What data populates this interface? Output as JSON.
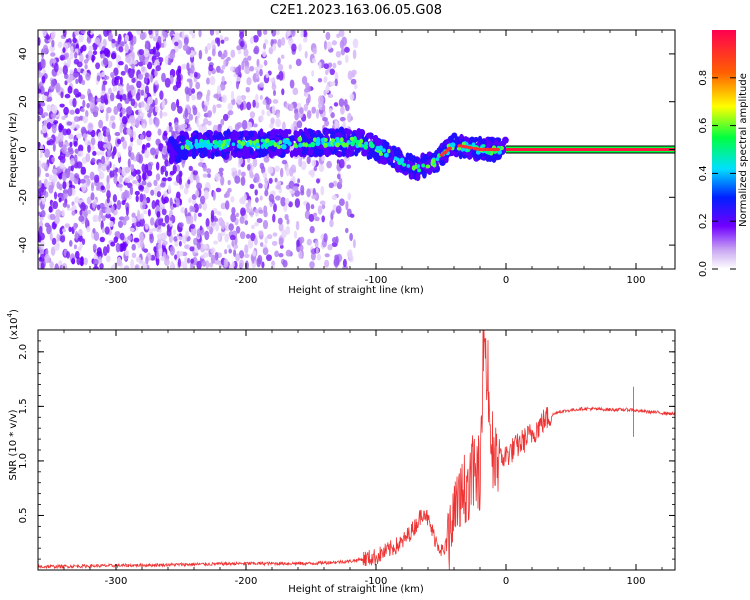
{
  "title": "C2E1.2023.163.06.05.G08",
  "chart_data": [
    {
      "type": "heatmap",
      "xlabel": "Height of straight line (km)",
      "ylabel": "Frequency (Hz)",
      "xlim": [
        -360,
        130
      ],
      "ylim": [
        -50,
        50
      ],
      "xticks": [
        -300,
        -200,
        -100,
        0,
        100
      ],
      "yticks": [
        -40,
        -20,
        0,
        20,
        40
      ],
      "colorbar": {
        "label": "Normalized spectral amplitude",
        "range": [
          0,
          1
        ],
        "ticks": [
          "0.0",
          "0.2",
          "0.4",
          "0.6",
          "0.8"
        ]
      },
      "carrier_line": {
        "frequency": 0,
        "x_start": 0,
        "x_end": 130
      },
      "signal_trace": [
        {
          "x": -250,
          "y": 2
        },
        {
          "x": -200,
          "y": 2
        },
        {
          "x": -150,
          "y": 3
        },
        {
          "x": -110,
          "y": 3
        },
        {
          "x": -90,
          "y": -2
        },
        {
          "x": -70,
          "y": -8
        },
        {
          "x": -55,
          "y": -5
        },
        {
          "x": -40,
          "y": 2
        },
        {
          "x": -20,
          "y": 0
        },
        {
          "x": 0,
          "y": 0
        }
      ]
    },
    {
      "type": "line",
      "xlabel": "Height of straight line (km)",
      "ylabel": "SNR (10 * v/v)",
      "multiplier_label": "(x10",
      "multiplier_exp": "4",
      "multiplier_close": ")",
      "xlim": [
        -360,
        130
      ],
      "ylim": [
        0,
        2.2
      ],
      "xticks": [
        -300,
        -200,
        -100,
        0,
        100
      ],
      "yticks": [
        "0.5",
        "1.0",
        "1.5",
        "2.0"
      ],
      "series": [
        {
          "color": "#ee3333",
          "points": [
            {
              "x": -360,
              "y": 0.03
            },
            {
              "x": -300,
              "y": 0.04
            },
            {
              "x": -250,
              "y": 0.05
            },
            {
              "x": -200,
              "y": 0.06
            },
            {
              "x": -150,
              "y": 0.06
            },
            {
              "x": -120,
              "y": 0.08
            },
            {
              "x": -100,
              "y": 0.12
            },
            {
              "x": -80,
              "y": 0.25
            },
            {
              "x": -70,
              "y": 0.4
            },
            {
              "x": -63,
              "y": 0.55
            },
            {
              "x": -55,
              "y": 0.3
            },
            {
              "x": -48,
              "y": 0.15
            },
            {
              "x": -40,
              "y": 0.45
            },
            {
              "x": -30,
              "y": 0.8
            },
            {
              "x": -20,
              "y": 0.9
            },
            {
              "x": -17,
              "y": 2.2
            },
            {
              "x": -10,
              "y": 0.95
            },
            {
              "x": 0,
              "y": 1.05
            },
            {
              "x": 10,
              "y": 1.15
            },
            {
              "x": 20,
              "y": 1.25
            },
            {
              "x": 30,
              "y": 1.38
            },
            {
              "x": 40,
              "y": 1.45
            },
            {
              "x": 60,
              "y": 1.48
            },
            {
              "x": 80,
              "y": 1.47
            },
            {
              "x": 97,
              "y": 1.47
            },
            {
              "x": 100,
              "y": 1.46
            },
            {
              "x": 130,
              "y": 1.43
            }
          ],
          "spikes": [
            {
              "x": -17,
              "y": 2.2
            },
            {
              "x": 98,
              "y": 1.68
            },
            {
              "x": 98,
              "y": 1.22
            }
          ]
        }
      ]
    }
  ]
}
